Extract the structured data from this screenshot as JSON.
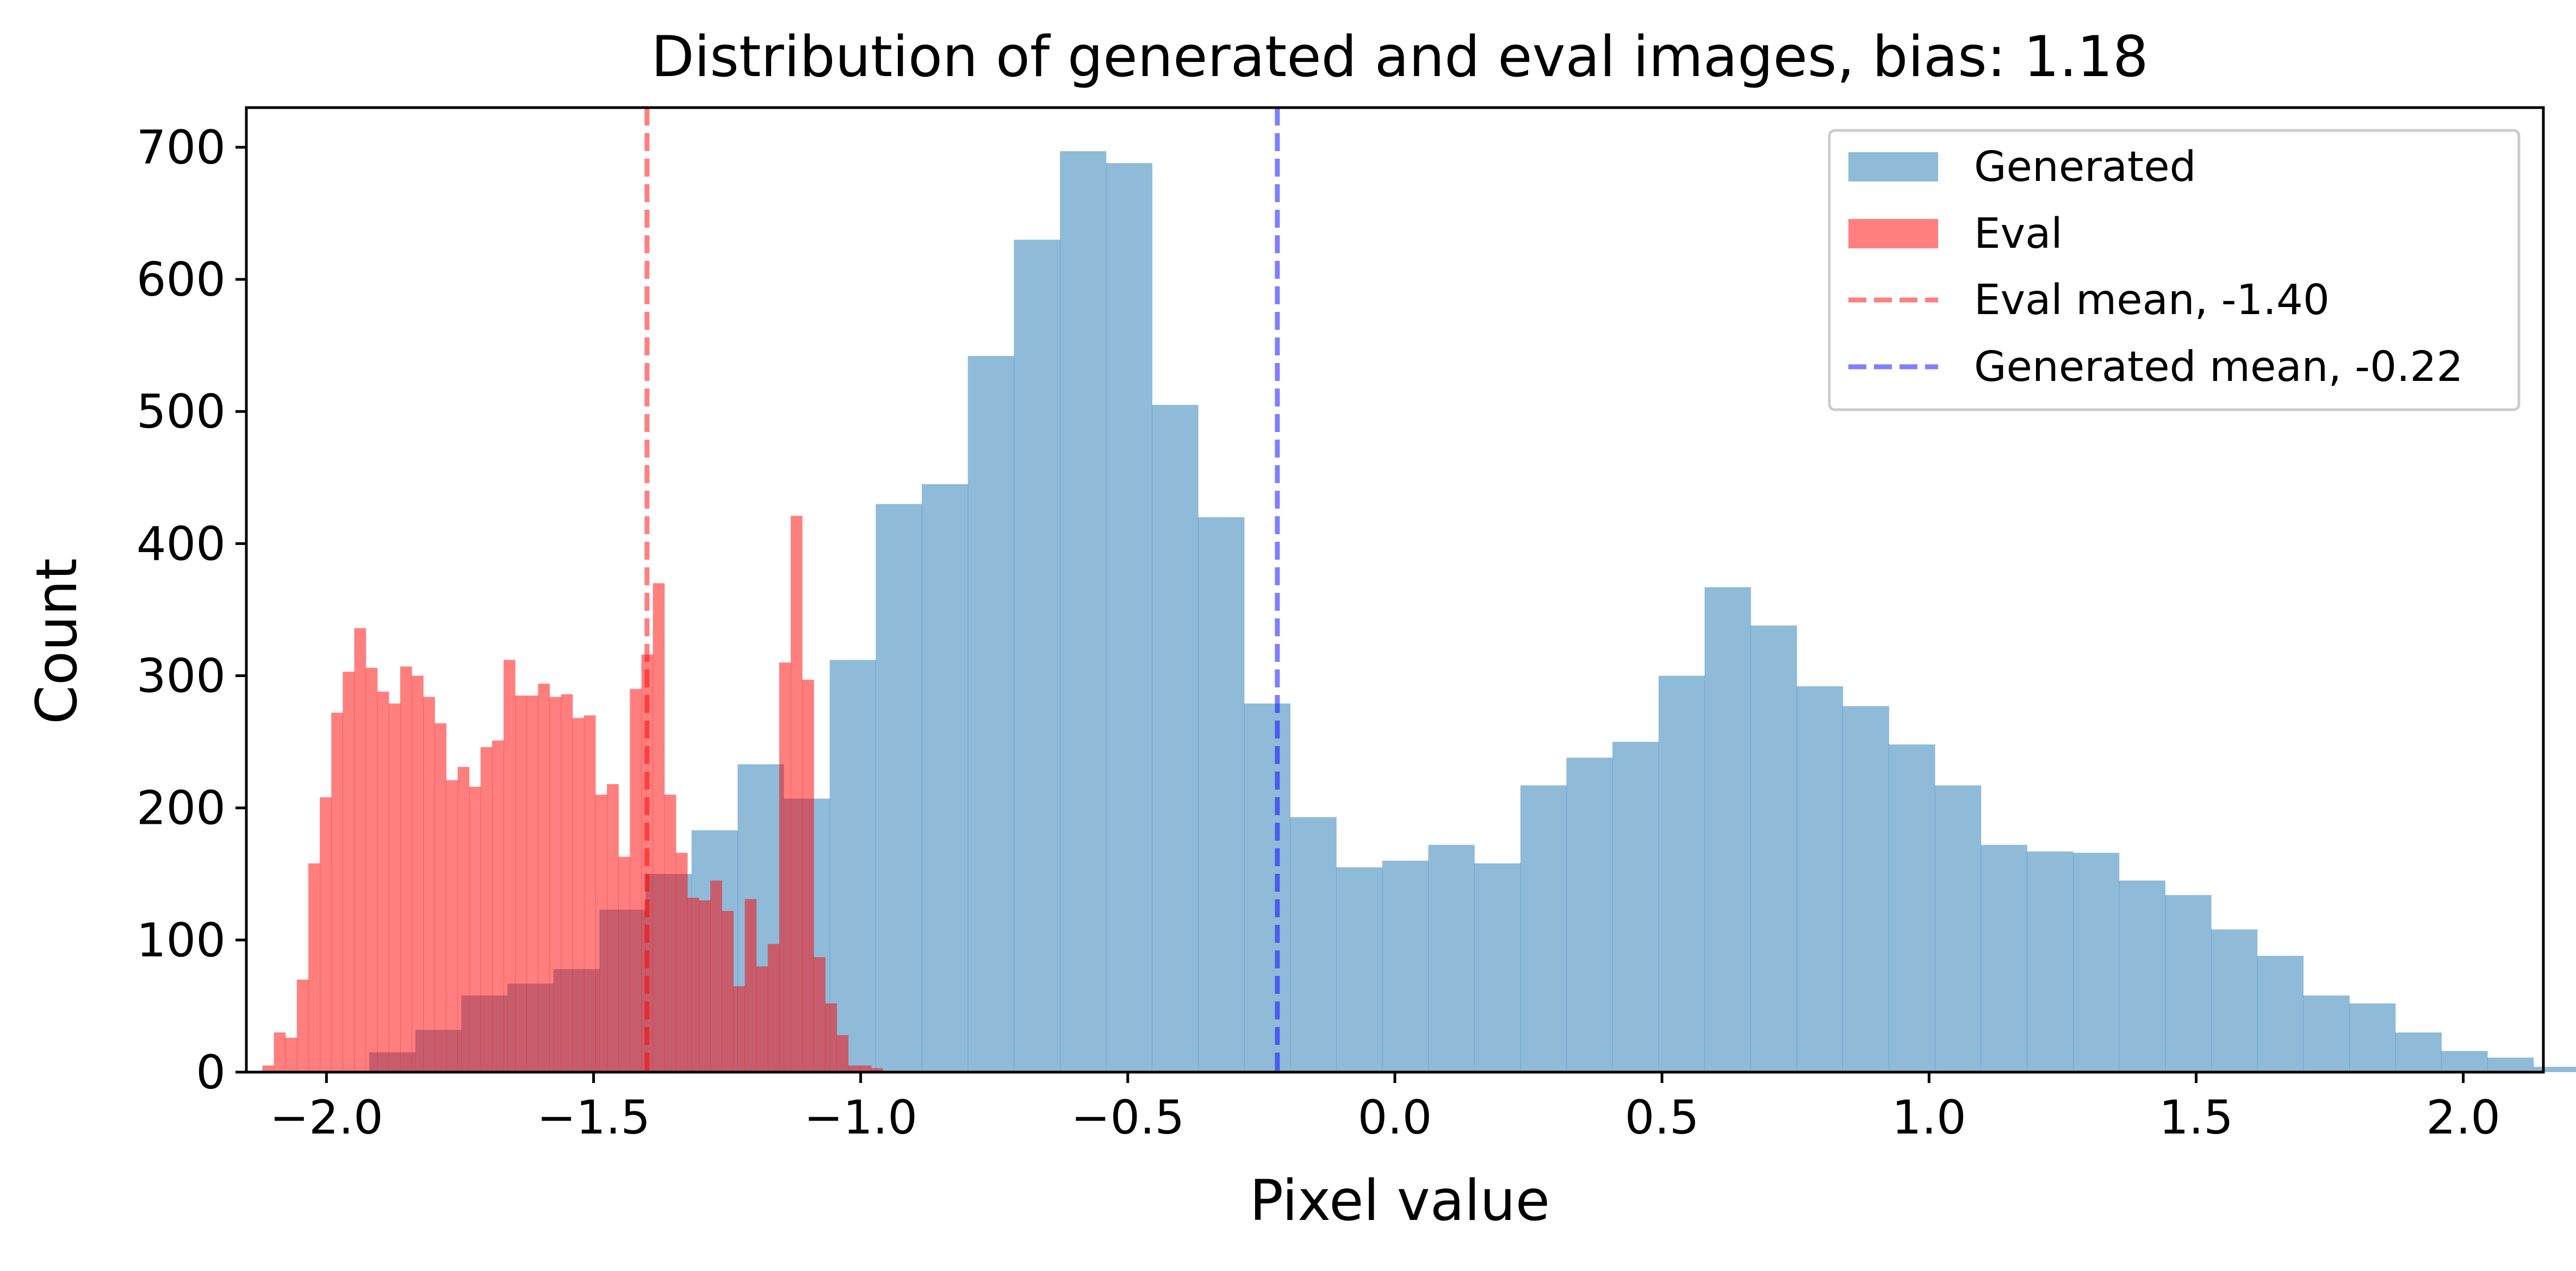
{
  "chart_data": {
    "type": "histogram",
    "title": "Distribution of generated and eval images, bias: 1.18",
    "xlabel": "Pixel value",
    "ylabel": "Count",
    "xlim": [
      -2.15,
      2.15
    ],
    "ylim": [
      0,
      730
    ],
    "xticks": [
      -2.0,
      -1.5,
      -1.0,
      -0.5,
      0.0,
      0.5,
      1.0,
      1.5,
      2.0
    ],
    "xtick_labels": [
      "−2.0",
      "−1.5",
      "−1.0",
      "−0.5",
      "0.0",
      "0.5",
      "1.0",
      "1.5",
      "2.0"
    ],
    "yticks": [
      0,
      100,
      200,
      300,
      400,
      500,
      600,
      700
    ],
    "ytick_labels": [
      "0",
      "100",
      "200",
      "300",
      "400",
      "500",
      "600",
      "700"
    ],
    "legend_position": "top-right",
    "series": [
      {
        "name": "Generated",
        "color": "#1f77b4",
        "alpha": 0.5,
        "bin_start": -1.92,
        "bin_width": 0.0862,
        "values": [
          15,
          32,
          58,
          67,
          78,
          123,
          150,
          183,
          233,
          207,
          312,
          430,
          445,
          542,
          630,
          697,
          688,
          505,
          420,
          279,
          193,
          155,
          160,
          172,
          158,
          217,
          238,
          250,
          300,
          367,
          338,
          292,
          277,
          248,
          217,
          172,
          167,
          166,
          145,
          134,
          108,
          88,
          58,
          52,
          30,
          16,
          11,
          4,
          2
        ]
      },
      {
        "name": "Eval",
        "color": "#ff0000",
        "alpha": 0.5,
        "bin_start": -2.12,
        "bin_width": 0.0215,
        "values": [
          5,
          30,
          26,
          70,
          158,
          208,
          272,
          303,
          336,
          306,
          288,
          279,
          307,
          300,
          284,
          264,
          221,
          231,
          216,
          246,
          251,
          312,
          285,
          285,
          294,
          284,
          286,
          268,
          270,
          210,
          218,
          163,
          290,
          316,
          370,
          210,
          166,
          132,
          130,
          145,
          122,
          65,
          131,
          80,
          97,
          310,
          421,
          297,
          87,
          52,
          28,
          5,
          5,
          3
        ]
      }
    ],
    "reference_lines": [
      {
        "name": "Eval mean, -1.40",
        "x": -1.4,
        "color": "#ff0000",
        "alpha": 0.5
      },
      {
        "name": "Generated mean, -0.22",
        "x": -0.22,
        "color": "#0000ff",
        "alpha": 0.5
      }
    ]
  }
}
